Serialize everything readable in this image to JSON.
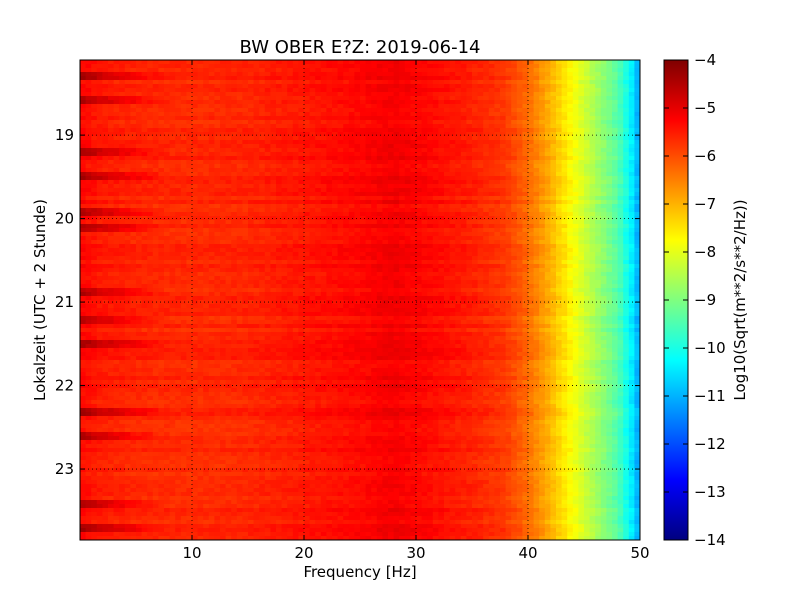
{
  "chart_data": {
    "type": "heatmap",
    "title": "BW OBER E?Z: 2019-06-14",
    "xlabel": "Frequency [Hz]",
    "ylabel": "Lokalzeit (UTC + 2 Stunde)",
    "xlim": [
      0,
      50
    ],
    "ylim": [
      18.1,
      23.85
    ],
    "y_inverted": true,
    "x_ticks": [
      10,
      20,
      30,
      40,
      50
    ],
    "x_tick_labels": [
      "10",
      "20",
      "30",
      "40",
      "50"
    ],
    "y_ticks": [
      19,
      20,
      21,
      22,
      23
    ],
    "y_tick_labels": [
      "19",
      "20",
      "21",
      "22",
      "23"
    ],
    "grid": true,
    "colormap": "jet",
    "colorbar": {
      "label": "Log10(Sqrt(m**2/s**2/Hz))",
      "vmin": -14,
      "vmax": -4,
      "ticks": [
        -4,
        -5,
        -6,
        -7,
        -8,
        -9,
        -10,
        -11,
        -12,
        -13,
        -14
      ],
      "tick_labels": [
        "−4",
        "−5",
        "−6",
        "−7",
        "−8",
        "−9",
        "−10",
        "−11",
        "−12",
        "−13",
        "−14"
      ]
    },
    "spectrum_profile": {
      "frequency_hz": [
        0,
        2,
        5,
        10,
        15,
        20,
        25,
        28,
        30,
        35,
        38,
        40,
        42,
        44,
        46,
        48,
        49.5,
        50
      ],
      "log10_amplitude": [
        -5.3,
        -5.5,
        -5.6,
        -5.65,
        -5.6,
        -5.45,
        -5.3,
        -5.15,
        -5.25,
        -5.55,
        -5.8,
        -6.3,
        -7.0,
        -7.8,
        -8.6,
        -9.4,
        -10.6,
        -11.3
      ]
    },
    "high_amplitude_time_bands": [
      18.3,
      18.6,
      19.2,
      19.5,
      19.9,
      20.1,
      20.9,
      21.2,
      21.5,
      22.3,
      22.6,
      23.4,
      23.7
    ]
  }
}
